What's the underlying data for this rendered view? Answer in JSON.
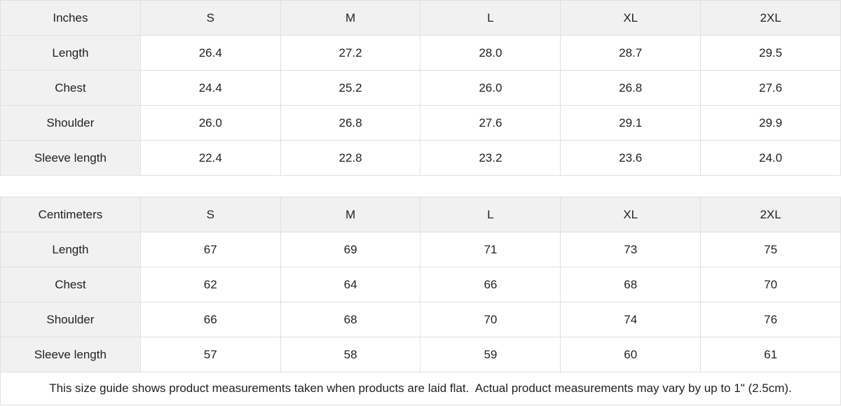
{
  "colors": {
    "header_bg": "#f1f1f1",
    "border": "#e0e0e0",
    "text": "#222222",
    "background": "#ffffff"
  },
  "tables": [
    {
      "unit_label": "Inches",
      "sizes": [
        "S",
        "M",
        "L",
        "XL",
        "2XL"
      ],
      "rows": [
        {
          "label": "Length",
          "values": [
            "26.4",
            "27.2",
            "28.0",
            "28.7",
            "29.5"
          ]
        },
        {
          "label": "Chest",
          "values": [
            "24.4",
            "25.2",
            "26.0",
            "26.8",
            "27.6"
          ]
        },
        {
          "label": "Shoulder",
          "values": [
            "26.0",
            "26.8",
            "27.6",
            "29.1",
            "29.9"
          ]
        },
        {
          "label": "Sleeve length",
          "values": [
            "22.4",
            "22.8",
            "23.2",
            "23.6",
            "24.0"
          ]
        }
      ]
    },
    {
      "unit_label": "Centimeters",
      "sizes": [
        "S",
        "M",
        "L",
        "XL",
        "2XL"
      ],
      "rows": [
        {
          "label": "Length",
          "values": [
            "67",
            "69",
            "71",
            "73",
            "75"
          ]
        },
        {
          "label": "Chest",
          "values": [
            "62",
            "64",
            "66",
            "68",
            "70"
          ]
        },
        {
          "label": "Shoulder",
          "values": [
            "66",
            "68",
            "70",
            "74",
            "76"
          ]
        },
        {
          "label": "Sleeve length",
          "values": [
            "57",
            "58",
            "59",
            "60",
            "61"
          ]
        }
      ]
    }
  ],
  "footer": {
    "note": "This size guide shows product measurements taken when products are laid flat.  Actual product measurements may vary by up to 1\" (2.5cm)."
  }
}
